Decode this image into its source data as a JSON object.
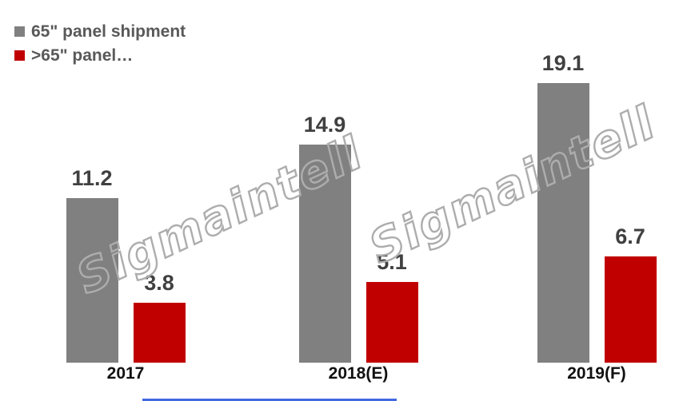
{
  "legend": {
    "items": [
      {
        "label": "65\" panel shipment",
        "color": "#808080"
      },
      {
        "label": ">65\" panel…",
        "color": "#c00000"
      }
    ]
  },
  "watermark": {
    "text": "Sigmaintell",
    "outline_color": "#adadad"
  },
  "chart_data": {
    "type": "bar",
    "categories": [
      "2017",
      "2018(E)",
      "2019(F)"
    ],
    "series": [
      {
        "name": "65\" panel shipment",
        "color": "#808080",
        "values": [
          11.2,
          14.9,
          19.1
        ]
      },
      {
        "name": ">65\" panel…",
        "color": "#c00000",
        "values": [
          3.8,
          5.1,
          6.7
        ]
      }
    ],
    "title": "",
    "xlabel": "",
    "ylabel": "",
    "ylim": [
      0,
      20
    ],
    "grid": false,
    "legend_position": "top-left",
    "value_labels": true,
    "value_label_color": "#404040",
    "axis_label_color": "#111111"
  },
  "footer": {
    "underline_color": "#4169e1"
  }
}
